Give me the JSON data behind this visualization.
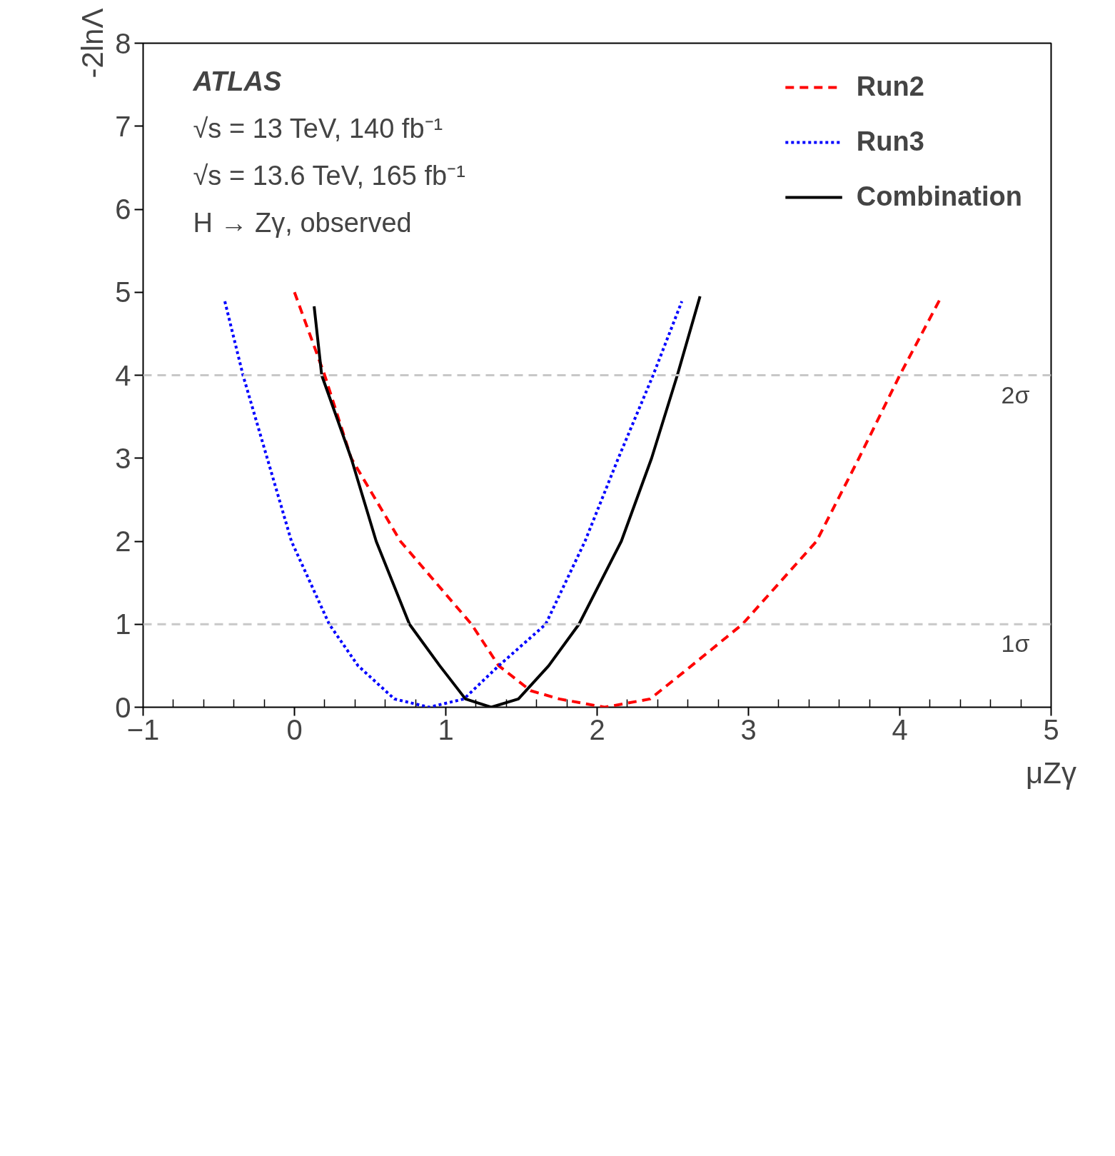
{
  "chart_data": {
    "type": "line",
    "xlabel": "μZγ",
    "ylabel": "-2lnΛ",
    "annotations": [
      "ATLAS",
      "√s = 13 TeV, 140 fb⁻¹",
      "√s = 13.6 TeV, 165 fb⁻¹",
      "H → Zγ, observed"
    ],
    "series": [
      {
        "name": "Run2",
        "color": "#ff0000",
        "line_style": "dashed",
        "x": [
          0.0,
          0.2,
          0.375,
          0.7,
          1.17,
          1.35,
          1.56,
          1.75,
          2.05,
          2.35,
          2.57,
          2.96,
          3.45,
          3.73,
          4.0,
          4.27
        ],
        "values": [
          5.0,
          4.0,
          3.0,
          2.0,
          1.0,
          0.5,
          0.2,
          0.1,
          0.0,
          0.1,
          0.42,
          1.0,
          2.0,
          3.0,
          4.0,
          4.93
        ]
      },
      {
        "name": "Run3",
        "color": "#0000ff",
        "line_style": "dotted",
        "x": [
          -0.46,
          -0.34,
          -0.18,
          -0.02,
          0.23,
          0.42,
          0.66,
          0.89,
          1.12,
          1.35,
          1.66,
          1.92,
          2.14,
          2.37,
          2.56
        ],
        "values": [
          4.89,
          4.0,
          3.0,
          2.0,
          1.0,
          0.5,
          0.1,
          0.0,
          0.1,
          0.5,
          1.0,
          2.0,
          3.0,
          4.0,
          4.89
        ]
      },
      {
        "name": "Combination",
        "color": "#000000",
        "line_style": "solid",
        "x": [
          0.13,
          0.18,
          0.375,
          0.54,
          0.76,
          0.96,
          1.13,
          1.3,
          1.48,
          1.68,
          1.88,
          2.16,
          2.36,
          2.53,
          2.68
        ],
        "values": [
          4.83,
          4.0,
          3.0,
          2.0,
          1.0,
          0.5,
          0.1,
          0.0,
          0.1,
          0.5,
          1.0,
          2.0,
          3.0,
          4.0,
          4.95
        ]
      }
    ],
    "xlim": [
      -1,
      5
    ],
    "ylim": [
      0,
      8
    ],
    "xticks": [
      -1,
      0,
      1,
      2,
      3,
      4,
      5
    ],
    "yticks": [
      0,
      1,
      2,
      3,
      4,
      5,
      6,
      7,
      8
    ],
    "ref_lines": [
      {
        "axis": "y",
        "value": 1,
        "label": "1σ",
        "color": "#c8c8c8",
        "line_style": "dashed"
      },
      {
        "axis": "y",
        "value": 4,
        "label": "2σ",
        "color": "#c8c8c8",
        "line_style": "dashed"
      }
    ],
    "grid": false,
    "legend": "top right",
    "marker": "none"
  }
}
